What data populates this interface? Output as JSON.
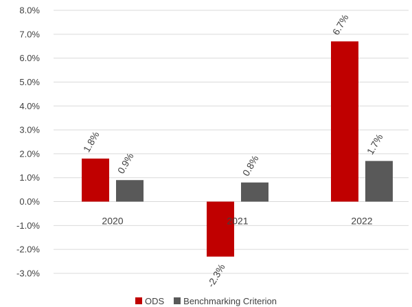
{
  "chart_data": {
    "type": "bar",
    "categories": [
      "2020",
      "2021",
      "2022"
    ],
    "series": [
      {
        "name": "ODS",
        "values": [
          1.8,
          -2.3,
          6.7
        ],
        "labels": [
          "1.8%",
          "-2.3%",
          "6.7%"
        ],
        "color": "#c00000"
      },
      {
        "name": "Benchmarking Criterion",
        "values": [
          0.9,
          0.8,
          1.7
        ],
        "labels": [
          "0.9%",
          "0.8%",
          "1.7%"
        ],
        "color": "#595959"
      }
    ],
    "ylim": [
      -3.0,
      8.0
    ],
    "yticks": [
      8.0,
      7.0,
      6.0,
      5.0,
      4.0,
      3.0,
      2.0,
      1.0,
      0.0,
      -1.0,
      -2.0,
      -3.0
    ],
    "ytick_labels": [
      "8.0%",
      "7.0%",
      "6.0%",
      "5.0%",
      "4.0%",
      "3.0%",
      "2.0%",
      "1.0%",
      "0.0%",
      "-1.0%",
      "-2.0%",
      "-3.0%"
    ],
    "grid": true,
    "legend": "bottom",
    "title": "",
    "xlabel": "",
    "ylabel": ""
  }
}
